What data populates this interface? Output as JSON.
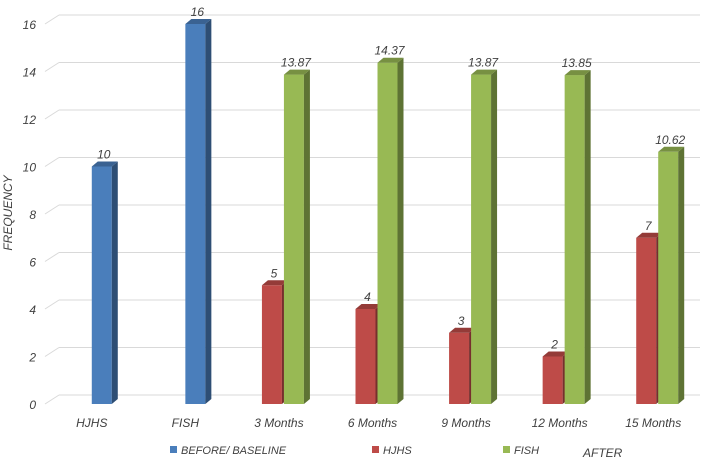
{
  "chart_data": {
    "type": "bar",
    "categories": [
      "HJHS",
      "FISH",
      "3 Months",
      "6 Months",
      "9 Months",
      "12 Months",
      "15 Months"
    ],
    "series": [
      {
        "name": "BEFORE/ BASELINE",
        "color": "#4a7ebb",
        "values": [
          10,
          16,
          null,
          null,
          null,
          null,
          null
        ]
      },
      {
        "name": "HJHS",
        "color": "#be4b48",
        "values": [
          null,
          null,
          5,
          4,
          3,
          2,
          7
        ]
      },
      {
        "name": "FISH",
        "color": "#98b954",
        "values": [
          null,
          null,
          13.87,
          14.37,
          13.87,
          13.85,
          10.62
        ]
      }
    ],
    "data_labels": [
      [
        "10",
        "16",
        null,
        null,
        null,
        null,
        null
      ],
      [
        null,
        null,
        "5",
        "4",
        "3",
        "2",
        "7"
      ],
      [
        null,
        null,
        "13.87",
        "14.37",
        "13.87",
        "13.85",
        "10.62"
      ]
    ],
    "y_ticks": [
      "0",
      "2",
      "4",
      "6",
      "8",
      "10",
      "12",
      "14",
      "16"
    ],
    "ylabel": "FREQUENCY",
    "group_label": "AFTER",
    "ylim": [
      0,
      16
    ],
    "grid": true,
    "legend_position": "bottom"
  }
}
